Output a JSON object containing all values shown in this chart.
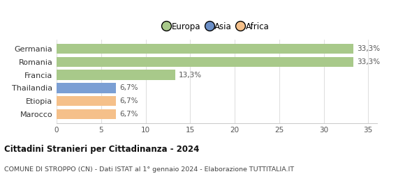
{
  "categories": [
    "Marocco",
    "Etiopia",
    "Thailandia",
    "Francia",
    "Romania",
    "Germania"
  ],
  "values": [
    6.7,
    6.7,
    6.7,
    13.3,
    33.3,
    33.3
  ],
  "colors": [
    "#f5c08a",
    "#f5c08a",
    "#7b9fd4",
    "#a8c98a",
    "#a8c98a",
    "#a8c98a"
  ],
  "labels": [
    "6,7%",
    "6,7%",
    "6,7%",
    "13,3%",
    "33,3%",
    "33,3%"
  ],
  "continent_colors": {
    "Europa": "#a8c98a",
    "Asia": "#6b8fc7",
    "Africa": "#f5c08a"
  },
  "xlim": [
    0,
    36
  ],
  "xticks": [
    0,
    5,
    10,
    15,
    20,
    25,
    30,
    35
  ],
  "title": "Cittadini Stranieri per Cittadinanza - 2024",
  "subtitle": "COMUNE DI STROPPO (CN) - Dati ISTAT al 1° gennaio 2024 - Elaborazione TUTTITALIA.IT",
  "background_color": "#ffffff",
  "plot_bg_color": "#f9f9f9",
  "grid_color": "#e0e0e0",
  "bar_height": 0.75
}
